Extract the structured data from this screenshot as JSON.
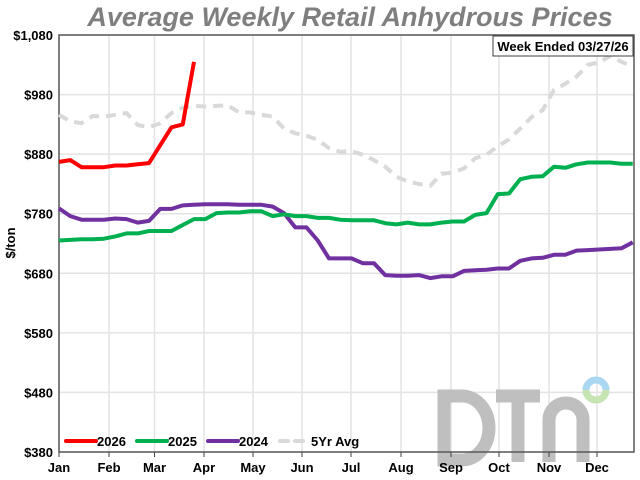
{
  "chart_data": {
    "type": "line",
    "title": "Average Weekly Retail Anhydrous Prices",
    "annotation": "Week Ended 03/27/26",
    "ylabel": "$/ton",
    "xlabel": "",
    "ylim": [
      380,
      1080
    ],
    "yticks": [
      "$380",
      "$480",
      "$580",
      "$680",
      "$780",
      "$880",
      "$980",
      "$1,080"
    ],
    "ytick_values": [
      380,
      480,
      580,
      680,
      780,
      880,
      980,
      1080
    ],
    "xticks": [
      "Jan",
      "Feb",
      "Mar",
      "Apr",
      "May",
      "Jun",
      "Jul",
      "Aug",
      "Sep",
      "Oct",
      "Nov",
      "Dec"
    ],
    "x_unit": "week of year",
    "grid": true,
    "legend_position": "bottom-left",
    "series": [
      {
        "name": "2026",
        "color": "#ff0000",
        "dashed": false,
        "values": [
          867,
          870,
          858,
          858,
          858,
          861,
          861,
          863,
          865,
          895,
          925,
          930,
          1035
        ]
      },
      {
        "name": "2025",
        "color": "#00b050",
        "dashed": false,
        "values": [
          735,
          736,
          737,
          737,
          738,
          742,
          747,
          747,
          751,
          751,
          751,
          761,
          771,
          771,
          781,
          782,
          782,
          784,
          784,
          776,
          779,
          776,
          776,
          773,
          773,
          770,
          769,
          769,
          769,
          764,
          762,
          765,
          762,
          762,
          765,
          767,
          767,
          778,
          781,
          813,
          814,
          838,
          842,
          843,
          859,
          857,
          863,
          866,
          866,
          866,
          864,
          864
        ]
      },
      {
        "name": "2024",
        "color": "#7030a0",
        "dashed": false,
        "values": [
          789,
          776,
          770,
          770,
          770,
          772,
          771,
          765,
          768,
          788,
          788,
          794,
          795,
          796,
          796,
          796,
          795,
          795,
          795,
          792,
          781,
          757,
          757,
          735,
          705,
          705,
          705,
          697,
          697,
          677,
          676,
          676,
          677,
          672,
          675,
          675,
          684,
          685,
          686,
          688,
          688,
          701,
          705,
          706,
          711,
          711,
          718,
          719,
          720,
          721,
          722,
          732
        ]
      },
      {
        "name": "5Yr Avg",
        "color": "#d9d9d9",
        "dashed": true,
        "values": [
          946,
          935,
          932,
          944,
          943,
          946,
          949,
          929,
          925,
          932,
          949,
          958,
          961,
          960,
          961,
          962,
          950,
          950,
          946,
          943,
          923,
          915,
          911,
          904,
          890,
          884,
          885,
          879,
          870,
          859,
          842,
          834,
          830,
          827,
          847,
          849,
          856,
          873,
          879,
          893,
          905,
          923,
          942,
          954,
          988,
          998,
          1010,
          1030,
          1034,
          1045,
          1035,
          1027
        ]
      }
    ]
  },
  "logo": {
    "text": "DTN",
    "ring_colors": [
      "#a9d8f0",
      "#c6e5b3"
    ]
  }
}
